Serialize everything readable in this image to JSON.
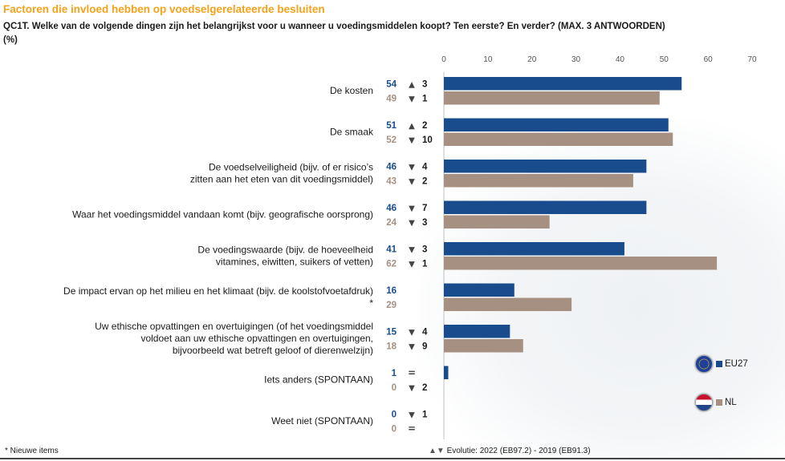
{
  "title": "Factoren die invloed hebben op voedselgerelateerde besluiten",
  "question": "QC1T. Welke van de volgende dingen zijn het belangrijkst voor u wanneer u voedingsmiddelen koopt? Ten eerste? En verder? (MAX. 3 ANTWOORDEN)",
  "unit": "(%)",
  "footnote": "* Nieuwe items",
  "evolution_label": "Evolutie: 2022 (EB97.2) - 2019 (EB91.3)",
  "colors": {
    "eu": "#184c8c",
    "nl": "#a69081",
    "title": "#f2a31b"
  },
  "legend": [
    {
      "label": "EU27",
      "flag": "eu-flag-icon",
      "color": "#184c8c"
    },
    {
      "label": "NL",
      "flag": "nl-flag-icon",
      "color": "#a69081"
    }
  ],
  "chart_data": {
    "type": "bar",
    "orientation": "horizontal",
    "xlim": [
      0,
      70
    ],
    "xticks": [
      0,
      10,
      20,
      30,
      40,
      50,
      60,
      70
    ],
    "grid": false,
    "legend_position": "right",
    "categories": [
      {
        "label": [
          "De kosten"
        ],
        "eu": 54,
        "eu_trend": "up",
        "eu_change": "3",
        "nl": 49,
        "nl_trend": "down",
        "nl_change": "1"
      },
      {
        "label": [
          "De smaak"
        ],
        "eu": 51,
        "eu_trend": "up",
        "eu_change": "2",
        "nl": 52,
        "nl_trend": "down",
        "nl_change": "10"
      },
      {
        "label": [
          "De voedselveiligheid (bijv. of er risico’s",
          "zitten aan het eten van dit voedingsmiddel)"
        ],
        "eu": 46,
        "eu_trend": "down",
        "eu_change": "4",
        "nl": 43,
        "nl_trend": "down",
        "nl_change": "2"
      },
      {
        "label": [
          "Waar het voedingsmiddel vandaan komt (bijv. geografische oorsprong)"
        ],
        "eu": 46,
        "eu_trend": "down",
        "eu_change": "7",
        "nl": 24,
        "nl_trend": "down",
        "nl_change": "3"
      },
      {
        "label": [
          "De voedingswaarde (bijv. de hoeveelheid",
          "vitamines, eiwitten, suikers of vetten)"
        ],
        "eu": 41,
        "eu_trend": "down",
        "eu_change": "3",
        "nl": 62,
        "nl_trend": "down",
        "nl_change": "1"
      },
      {
        "label": [
          "De impact ervan op het milieu en het klimaat (bijv. de koolstofvoetafdruk)",
          "*"
        ],
        "eu": 16,
        "eu_trend": "",
        "eu_change": "",
        "nl": 29,
        "nl_trend": "",
        "nl_change": ""
      },
      {
        "label": [
          "Uw ethische opvattingen en overtuigingen (of het voedingsmiddel",
          "voldoet aan uw ethische opvattingen en overtuigingen,",
          "bijvoorbeeld wat betreft geloof of dierenwelzijn)"
        ],
        "eu": 15,
        "eu_trend": "down",
        "eu_change": "4",
        "nl": 18,
        "nl_trend": "down",
        "nl_change": "9"
      },
      {
        "label": [
          "Iets anders (SPONTAAN)"
        ],
        "eu": 1,
        "eu_trend": "equal",
        "eu_change": "",
        "nl": 0,
        "nl_trend": "down",
        "nl_change": "2"
      },
      {
        "label": [
          "Weet niet (SPONTAAN)"
        ],
        "eu": 0,
        "eu_trend": "down",
        "eu_change": "1",
        "nl": 0,
        "nl_trend": "equal",
        "nl_change": ""
      }
    ]
  }
}
